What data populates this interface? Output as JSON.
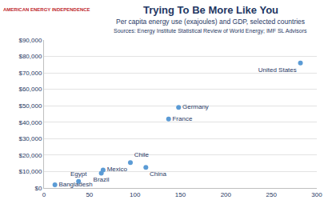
{
  "chart_data": {
    "type": "scatter",
    "title": "Trying To Be More Like You",
    "subtitle": "Per capita energy use (exajoules) and GDP, selected countries",
    "source": "Sources: Energy Institute Statistical Review of World Energy; IMF SL Advisors",
    "annotations": [
      {
        "text": "AMERICAN ENERGY INDEPENDENCE"
      }
    ],
    "point_labels": [
      "Bangladesh",
      "Egypt",
      "Brazil",
      "Mexico",
      "Chile",
      "China",
      "France",
      "Germany",
      "United States"
    ],
    "x": [
      12,
      38,
      63,
      65,
      95,
      112,
      137,
      148,
      282
    ],
    "values": [
      2000,
      4000,
      9000,
      11000,
      15500,
      12500,
      42000,
      49000,
      76000
    ],
    "color": "#5b9bd5",
    "marker": "circle",
    "xlim": [
      0,
      300
    ],
    "xticks": [
      0,
      50,
      100,
      150,
      200,
      250,
      300
    ],
    "ylim": [
      0,
      90000
    ],
    "yticks": [
      {
        "value": 0,
        "label": "$0"
      },
      {
        "value": 10000,
        "label": "$10,000"
      },
      {
        "value": 20000,
        "label": "$20,000"
      },
      {
        "value": 30000,
        "label": "$30,000"
      },
      {
        "value": 40000,
        "label": "$40,000"
      },
      {
        "value": 50000,
        "label": "$50,000"
      },
      {
        "value": 60000,
        "label": "$60,000"
      },
      {
        "value": 70000,
        "label": "$70,000"
      },
      {
        "value": 80000,
        "label": "$80,000"
      },
      {
        "value": 90000,
        "label": "$90,000"
      }
    ],
    "grid": true
  }
}
